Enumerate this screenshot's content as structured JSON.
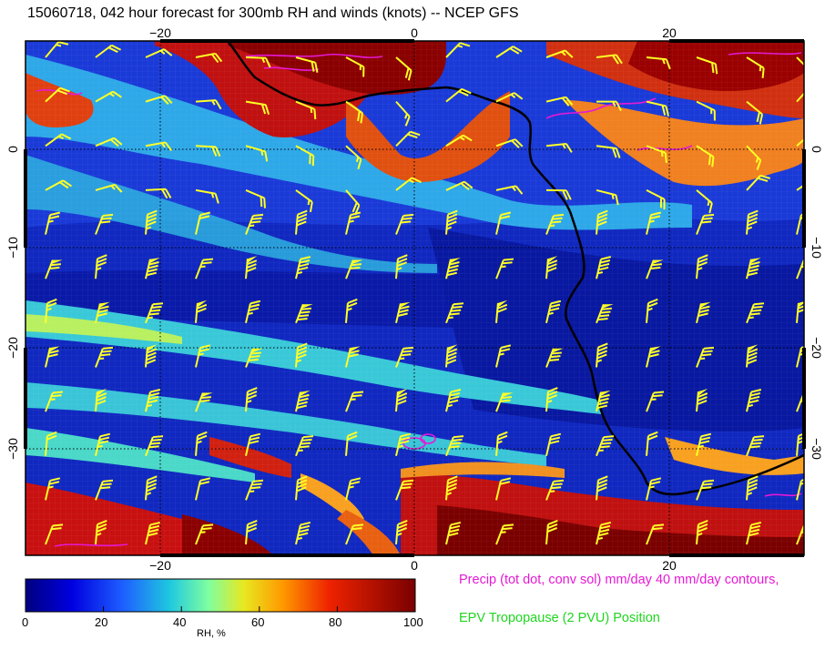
{
  "title": "15060718, 042 hour forecast for 300mb RH and winds (knots) -- NCEP GFS",
  "map": {
    "x_ticks": [
      {
        "value": -20,
        "label": "−20"
      },
      {
        "value": 0,
        "label": "0"
      },
      {
        "value": 20,
        "label": "20"
      }
    ],
    "y_ticks": [
      {
        "value": 0,
        "label": "0"
      },
      {
        "value": -10,
        "label": "−10"
      },
      {
        "value": -20,
        "label": "−20"
      },
      {
        "value": -30,
        "label": "−30"
      }
    ],
    "lon_range": [
      -30,
      30
    ],
    "lat_range": [
      -40,
      10
    ],
    "colors": {
      "rh_low": "#000080",
      "rh_mid": "#1fc8d8",
      "rh_high": "#7a0000",
      "wind_barbs": "#ffff26",
      "precip_contours": "#e619d6",
      "coastline": "#000000"
    },
    "icons": [
      "wind-barb-icon"
    ]
  },
  "colorbar": {
    "ticks": [
      "0",
      "20",
      "40",
      "60",
      "80",
      "100"
    ],
    "title": "RH, %"
  },
  "legend": {
    "precip": "Precip (tot dot, conv sol) mm/day 40 mm/day contours,",
    "epv": "EPV Tropopause (2 PVU) Position"
  }
}
